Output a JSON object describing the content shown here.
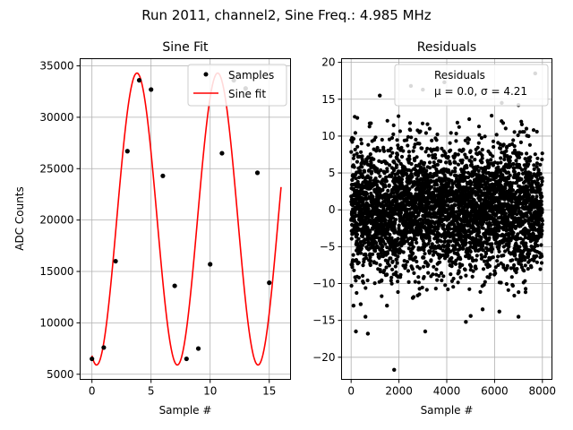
{
  "figure": {
    "suptitle": "Run 2011, channel2, Sine Freq.: 4.985 MHz"
  },
  "chart_data": [
    {
      "type": "line",
      "title": "Sine Fit",
      "xlabel": "Sample #",
      "ylabel": "ADC Counts",
      "xlim": [
        -1,
        16.8
      ],
      "ylim": [
        4500,
        35700
      ],
      "xticks": [
        0,
        5,
        10,
        15
      ],
      "yticks": [
        5000,
        10000,
        15000,
        20000,
        25000,
        30000,
        35000
      ],
      "grid": true,
      "legend": {
        "placement": "top-right",
        "entries": [
          "Samples",
          "Sine fit"
        ]
      },
      "series": [
        {
          "name": "Samples",
          "kind": "scatter",
          "color": "#000000",
          "x": [
            0,
            1,
            2,
            3,
            4,
            5,
            6,
            7,
            8,
            9,
            10,
            11,
            12,
            13,
            14,
            15
          ],
          "y": [
            6500,
            7600,
            16000,
            26700,
            33600,
            32700,
            24300,
            13600,
            6500,
            7500,
            15700,
            26500,
            33600,
            32800,
            24600,
            13900
          ]
        },
        {
          "name": "Sine fit",
          "kind": "line",
          "color": "#ff0000",
          "model": {
            "amplitude": 14200,
            "offset": 20100,
            "period": 6.83,
            "phase_x": 2.1
          },
          "x_range": [
            0,
            16
          ]
        }
      ]
    },
    {
      "type": "scatter",
      "title": "Residuals",
      "xlabel": "Sample #",
      "ylabel": "",
      "xlim": [
        -400,
        8400
      ],
      "ylim": [
        -23,
        20.5
      ],
      "xticks": [
        0,
        2000,
        4000,
        6000,
        8000
      ],
      "yticks": [
        -20,
        -15,
        -10,
        -5,
        0,
        5,
        10,
        15,
        20
      ],
      "grid": true,
      "legend": {
        "placement": "top-right",
        "entries": [
          "Residuals",
          "μ = 0.0, σ = 4.21"
        ]
      },
      "stats": {
        "mu": 0.0,
        "sigma": 4.21
      },
      "series": [
        {
          "name": "Residuals",
          "color": "#000000",
          "n_points": 8000,
          "outliers": [
            [
              1800,
              -21.7
            ],
            [
              7700,
              18.5
            ],
            [
              2500,
              16.8
            ],
            [
              3000,
              16.3
            ],
            [
              3900,
              17.3
            ],
            [
              1200,
              15.5
            ],
            [
              6300,
              14.5
            ],
            [
              7000,
              14.2
            ],
            [
              200,
              -16.5
            ],
            [
              700,
              -16.8
            ],
            [
              3100,
              -16.5
            ],
            [
              4800,
              -15.2
            ],
            [
              5500,
              -13.5
            ],
            [
              7000,
              -14.5
            ],
            [
              6200,
              -13.8
            ],
            [
              100,
              -13.0
            ],
            [
              400,
              -12.8
            ],
            [
              1500,
              -13.0
            ],
            [
              600,
              -14.5
            ],
            [
              5000,
              -14.4
            ]
          ]
        }
      ]
    }
  ]
}
